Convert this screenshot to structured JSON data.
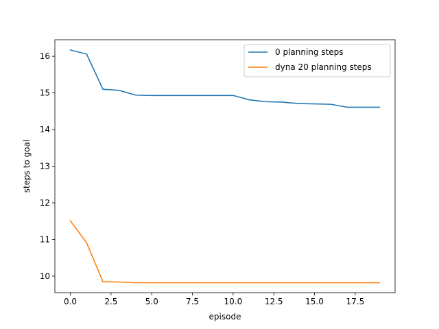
{
  "chart_data": {
    "type": "line",
    "title": "",
    "xlabel": "episode",
    "ylabel": "steps to goal",
    "xlim": [
      -0.95,
      19.95
    ],
    "ylim": [
      9.55,
      16.45
    ],
    "xticks": [
      0.0,
      2.5,
      5.0,
      7.5,
      10.0,
      12.5,
      15.0,
      17.5
    ],
    "xtick_labels": [
      "0.0",
      "2.5",
      "5.0",
      "7.5",
      "10.0",
      "12.5",
      "15.0",
      "17.5"
    ],
    "yticks": [
      10,
      11,
      12,
      13,
      14,
      15,
      16
    ],
    "ytick_labels": [
      "10",
      "11",
      "12",
      "13",
      "14",
      "15",
      "16"
    ],
    "grid": false,
    "legend_position": "top-right",
    "x": [
      0,
      1,
      2,
      3,
      4,
      5,
      6,
      7,
      8,
      9,
      10,
      11,
      12,
      13,
      14,
      15,
      16,
      17,
      18,
      19
    ],
    "series": [
      {
        "name": "0 planning steps",
        "color": "#1f77b4",
        "values": [
          16.17,
          16.06,
          15.1,
          15.07,
          14.94,
          14.93,
          14.93,
          14.93,
          14.93,
          14.93,
          14.93,
          14.81,
          14.76,
          14.75,
          14.71,
          14.7,
          14.69,
          14.61,
          14.61,
          14.61
        ]
      },
      {
        "name": "dyna 20 planning steps",
        "color": "#ff7f0e",
        "values": [
          11.51,
          10.91,
          9.85,
          9.84,
          9.82,
          9.82,
          9.82,
          9.82,
          9.82,
          9.82,
          9.82,
          9.82,
          9.82,
          9.82,
          9.82,
          9.82,
          9.82,
          9.82,
          9.82,
          9.82
        ]
      }
    ]
  }
}
